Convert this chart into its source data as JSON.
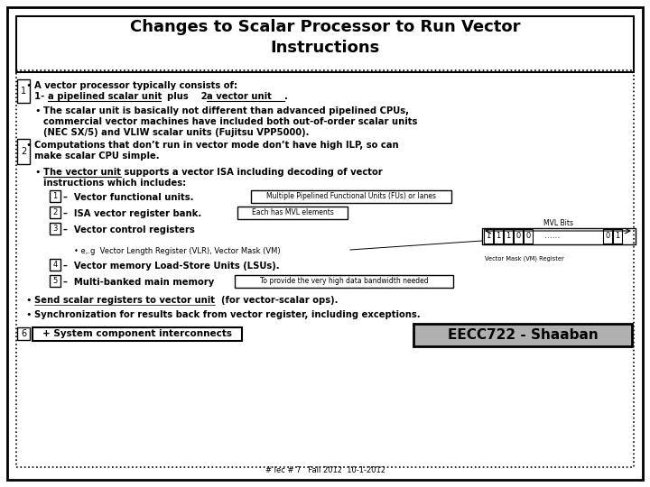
{
  "title_line1": "Changes to Scalar Processor to Run Vector",
  "title_line2": "Instructions",
  "bg_color": "#ffffff",
  "border_color": "#000000",
  "footer": "# lec # 7   Fall 2012  10-1-2012"
}
